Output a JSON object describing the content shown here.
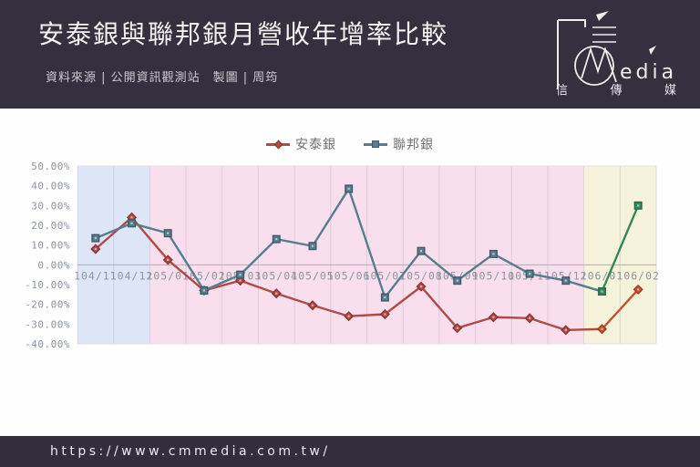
{
  "header": {
    "title": "安泰銀與聯邦銀月營收年增率比較",
    "subtitle": "資料來源 | 公開資訊觀測站　製圖 | 周筠"
  },
  "logo": {
    "wordmark_m": "M",
    "wordmark_suffix": "edia",
    "chinese_chars": [
      "信",
      "傳",
      "媒"
    ]
  },
  "footer": {
    "url": "https://www.cmmedia.com.tw/"
  },
  "chart_data": {
    "type": "line",
    "title": "",
    "xlabel": "",
    "ylabel": "",
    "ylim": [
      -40,
      50
    ],
    "grid": "vertical-category-lines, zero-axis-line",
    "legend_position": "top-center",
    "categories": [
      "104/11",
      "104/12",
      "105/01",
      "105/02",
      "105/03",
      "105/04",
      "105/05",
      "105/06",
      "105/07",
      "105/08",
      "105/09",
      "105/10",
      "105/11",
      "105/12",
      "106/01",
      "106/02"
    ],
    "yticks": {
      "labels": [
        "50.00%",
        "40.00%",
        "30.00%",
        "20.00%",
        "10.00%",
        "0.00%",
        "-10.00%",
        "-20.00%",
        "-30.00%",
        "-40.00%"
      ],
      "values": [
        50,
        40,
        30,
        20,
        10,
        0,
        -10,
        -20,
        -30,
        -40
      ]
    },
    "series": [
      {
        "name": "安泰銀",
        "marker": "diamond",
        "color": "#b24a47",
        "marker_stroke": "#8e3634",
        "highlight_color": "#c5512e",
        "highlight_stroke": "#9d3f1f",
        "values": [
          8,
          24,
          2.5,
          -13,
          -8,
          -14.5,
          -20.5,
          -26,
          -25,
          -11,
          -32,
          -26.5,
          -27,
          -33,
          -32.5,
          -12.5
        ]
      },
      {
        "name": "聯邦銀",
        "marker": "square",
        "color": "#587d8d",
        "marker_stroke": "#3f5a68",
        "highlight_color": "#35875a",
        "highlight_stroke": "#256b43",
        "values": [
          13.5,
          21,
          16,
          -13,
          -5,
          13,
          9.5,
          38.5,
          -16.5,
          7,
          -8,
          5.5,
          -4.5,
          -8,
          -13.5,
          30
        ]
      }
    ],
    "highlight_last_segment": true,
    "regions": [
      {
        "name": "period-104",
        "start_index": 0,
        "end_index": 2,
        "color": "#dce6f6"
      },
      {
        "name": "period-105",
        "start_index": 2,
        "end_index": 14,
        "color": "#f9dfed"
      },
      {
        "name": "period-106",
        "start_index": 14,
        "end_index": 16,
        "color": "#f5f3da"
      }
    ],
    "colors": {
      "background_dark": "#34303f",
      "card": "#fefefe",
      "zero_line": "#b3abb5",
      "gridline": "#8a84a0",
      "axis_text": "#8d94a3"
    }
  }
}
